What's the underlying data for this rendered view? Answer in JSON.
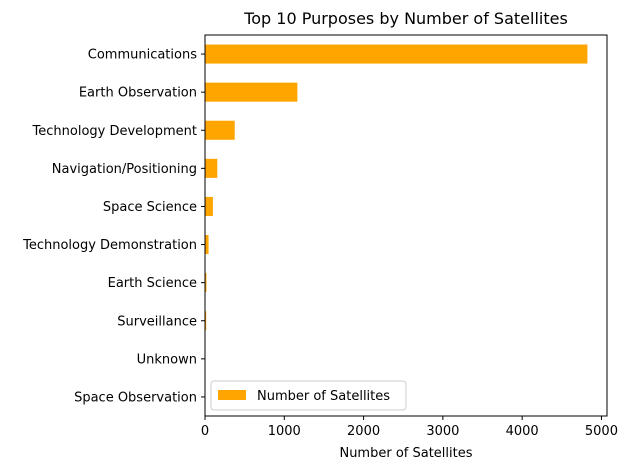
{
  "chart_data": {
    "type": "bar",
    "orientation": "horizontal",
    "title": "Top 10 Purposes by Number of Satellites",
    "xlabel": "Number of Satellites",
    "ylabel": "",
    "categories": [
      "Communications",
      "Earth Observation",
      "Technology Development",
      "Navigation/Positioning",
      "Space Science",
      "Technology Demonstration",
      "Earth Science",
      "Surveillance",
      "Unknown",
      "Space Observation"
    ],
    "series": [
      {
        "name": "Number of Satellites",
        "values": [
          4823,
          1165,
          375,
          155,
          100,
          45,
          18,
          15,
          5,
          5
        ],
        "color": "#FFA500"
      }
    ],
    "xlim": [
      0,
      5070
    ],
    "xticks": [
      0,
      1000,
      2000,
      3000,
      4000,
      5000
    ],
    "grid": false,
    "legend_position": "lower-left"
  }
}
